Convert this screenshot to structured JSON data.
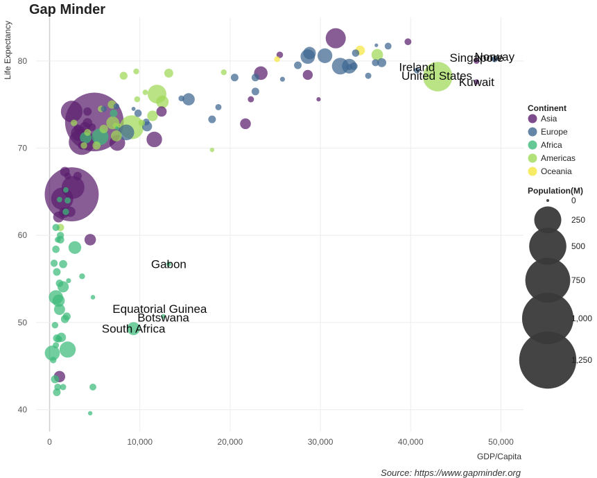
{
  "title": "Gap Minder",
  "source": "Source: https://www.gapminder.org",
  "chart_data": {
    "type": "scatter",
    "xlabel": "GDP/Capita",
    "ylabel": "Life Expectancy",
    "xlim": [
      -1500,
      52500
    ],
    "ylim": [
      37.5,
      85
    ],
    "x_ticks": [
      0,
      10000,
      20000,
      30000,
      40000,
      50000
    ],
    "x_tick_labels": [
      "0",
      "10,000",
      "20,000",
      "30,000",
      "40,000",
      "50,000"
    ],
    "y_ticks": [
      40,
      50,
      60,
      70,
      80
    ],
    "y_tick_labels": [
      "40",
      "50",
      "60",
      "70",
      "80"
    ],
    "grid": true,
    "colors": {
      "Asia": "#5a1e6e",
      "Europe": "#3d6790",
      "Africa": "#3cba7a",
      "Americas": "#9fd857",
      "Oceania": "#f5e640"
    },
    "legend": {
      "continent_title": "Continent",
      "continents": [
        "Asia",
        "Europe",
        "Africa",
        "Americas",
        "Oceania"
      ],
      "population_title": "Population(M)",
      "population_values": [
        0,
        250,
        500,
        750,
        1000,
        1250
      ],
      "population_labels": [
        "0",
        "250",
        "500",
        "750",
        "1,000",
        "1,250"
      ],
      "placement": "right"
    },
    "labels": [
      {
        "text": "Norway",
        "x": 49300,
        "y": 80.5,
        "continent": "Europe"
      },
      {
        "text": "Singapore",
        "x": 47300,
        "y": 80.4,
        "continent": "Asia"
      },
      {
        "text": "Ireland",
        "x": 40700,
        "y": 79.3,
        "continent": "Europe"
      },
      {
        "text": "United States",
        "x": 42900,
        "y": 78.3,
        "continent": "Americas"
      },
      {
        "text": "Kuwait",
        "x": 47300,
        "y": 77.6,
        "continent": "Asia"
      },
      {
        "text": "Gabon",
        "x": 13200,
        "y": 56.7,
        "continent": "Africa"
      },
      {
        "text": "Equatorial Guinea",
        "x": 12200,
        "y": 51.6,
        "continent": "Africa"
      },
      {
        "text": "Botswana",
        "x": 12600,
        "y": 50.6,
        "continent": "Africa"
      },
      {
        "text": "South Africa",
        "x": 9300,
        "y": 49.3,
        "continent": "Africa"
      }
    ],
    "points": [
      {
        "x": 4960,
        "y": 73,
        "pop": 1319,
        "c": "Asia"
      },
      {
        "x": 2450,
        "y": 64.7,
        "pop": 1110,
        "c": "Asia"
      },
      {
        "x": 3550,
        "y": 70.7,
        "pop": 223,
        "c": "Asia"
      },
      {
        "x": 2600,
        "y": 65.5,
        "pop": 169,
        "c": "Asia"
      },
      {
        "x": 2450,
        "y": 74.2,
        "pop": 150,
        "c": "Asia"
      },
      {
        "x": 1400,
        "y": 64.2,
        "pop": 160,
        "c": "Asia"
      },
      {
        "x": 31700,
        "y": 82.6,
        "pop": 127,
        "c": "Asia"
      },
      {
        "x": 7500,
        "y": 70.6,
        "pop": 71,
        "c": "Asia"
      },
      {
        "x": 11600,
        "y": 71,
        "pop": 69,
        "c": "Asia"
      },
      {
        "x": 3200,
        "y": 71.7,
        "pop": 65,
        "c": "Asia"
      },
      {
        "x": 23400,
        "y": 78.6,
        "pop": 49,
        "c": "Asia"
      },
      {
        "x": 28600,
        "y": 78.4,
        "pop": 22,
        "c": "Asia"
      },
      {
        "x": 21700,
        "y": 72.8,
        "pop": 27,
        "c": "Asia"
      },
      {
        "x": 3900,
        "y": 72.4,
        "pop": 25,
        "c": "Asia"
      },
      {
        "x": 1000,
        "y": 62.1,
        "pop": 28,
        "c": "Asia"
      },
      {
        "x": 1700,
        "y": 67.3,
        "pop": 20,
        "c": "Asia"
      },
      {
        "x": 4500,
        "y": 59.5,
        "pop": 32,
        "c": "Asia"
      },
      {
        "x": 1100,
        "y": 43.8,
        "pop": 31,
        "c": "Asia"
      },
      {
        "x": 12400,
        "y": 74.2,
        "pop": 24,
        "c": "Asia"
      },
      {
        "x": 4200,
        "y": 72.9,
        "pop": 19,
        "c": "Asia"
      },
      {
        "x": 2300,
        "y": 62.7,
        "pop": 23,
        "c": "Asia"
      },
      {
        "x": 1600,
        "y": 62.6,
        "pop": 25,
        "c": "Asia"
      },
      {
        "x": 4700,
        "y": 72.4,
        "pop": 10,
        "c": "Asia"
      },
      {
        "x": 3600,
        "y": 70.3,
        "pop": 12,
        "c": "Asia"
      },
      {
        "x": 1700,
        "y": 62.7,
        "pop": 10,
        "c": "Asia"
      },
      {
        "x": 3100,
        "y": 66.8,
        "pop": 13,
        "c": "Asia"
      },
      {
        "x": 47300,
        "y": 80,
        "pop": 4,
        "c": "Asia"
      },
      {
        "x": 47300,
        "y": 77.6,
        "pop": 2.5,
        "c": "Asia"
      },
      {
        "x": 39700,
        "y": 82.2,
        "pop": 7,
        "c": "Asia"
      },
      {
        "x": 25500,
        "y": 80.7,
        "pop": 6,
        "c": "Asia"
      },
      {
        "x": 29800,
        "y": 75.6,
        "pop": 1,
        "c": "Asia"
      },
      {
        "x": 22300,
        "y": 75.6,
        "pop": 5,
        "c": "Asia"
      },
      {
        "x": 4200,
        "y": 74.2,
        "pop": 13,
        "c": "Asia"
      },
      {
        "x": 2000,
        "y": 66.8,
        "pop": 7,
        "c": "Asia"
      },
      {
        "x": 3100,
        "y": 72.3,
        "pop": 9,
        "c": "Asia"
      },
      {
        "x": 32200,
        "y": 79.4,
        "pop": 82,
        "c": "Europe"
      },
      {
        "x": 30500,
        "y": 80.6,
        "pop": 61,
        "c": "Europe"
      },
      {
        "x": 33200,
        "y": 79.4,
        "pop": 60,
        "c": "Europe"
      },
      {
        "x": 28600,
        "y": 80.5,
        "pop": 58,
        "c": "Europe"
      },
      {
        "x": 28800,
        "y": 80.9,
        "pop": 40,
        "c": "Europe"
      },
      {
        "x": 15400,
        "y": 75.6,
        "pop": 38,
        "c": "Europe"
      },
      {
        "x": 8500,
        "y": 71.8,
        "pop": 71,
        "c": "Europe"
      },
      {
        "x": 10800,
        "y": 72.5,
        "pop": 22,
        "c": "Europe"
      },
      {
        "x": 36800,
        "y": 79.8,
        "pop": 16,
        "c": "Europe"
      },
      {
        "x": 33700,
        "y": 79.4,
        "pop": 10,
        "c": "Europe"
      },
      {
        "x": 27500,
        "y": 79.5,
        "pop": 10,
        "c": "Europe"
      },
      {
        "x": 22800,
        "y": 78.1,
        "pop": 10,
        "c": "Europe"
      },
      {
        "x": 22800,
        "y": 76.5,
        "pop": 10,
        "c": "Europe"
      },
      {
        "x": 18000,
        "y": 73.3,
        "pop": 10,
        "c": "Europe"
      },
      {
        "x": 20500,
        "y": 78.1,
        "pop": 10,
        "c": "Europe"
      },
      {
        "x": 36100,
        "y": 79.8,
        "pop": 8,
        "c": "Europe"
      },
      {
        "x": 37500,
        "y": 81.7,
        "pop": 7,
        "c": "Europe"
      },
      {
        "x": 33900,
        "y": 80.9,
        "pop": 9,
        "c": "Europe"
      },
      {
        "x": 35300,
        "y": 78.3,
        "pop": 5,
        "c": "Europe"
      },
      {
        "x": 33200,
        "y": 79.3,
        "pop": 5,
        "c": "Europe"
      },
      {
        "x": 49300,
        "y": 80.2,
        "pop": 4.6,
        "c": "Europe"
      },
      {
        "x": 40700,
        "y": 78.9,
        "pop": 4.1,
        "c": "Europe"
      },
      {
        "x": 10700,
        "y": 73,
        "pop": 7,
        "c": "Europe"
      },
      {
        "x": 9800,
        "y": 74,
        "pop": 9,
        "c": "Europe"
      },
      {
        "x": 6000,
        "y": 74.5,
        "pop": 4,
        "c": "Europe"
      },
      {
        "x": 7400,
        "y": 74.8,
        "pop": 4,
        "c": "Europe"
      },
      {
        "x": 14600,
        "y": 75.7,
        "pop": 4,
        "c": "Europe"
      },
      {
        "x": 18700,
        "y": 74.7,
        "pop": 5,
        "c": "Europe"
      },
      {
        "x": 25800,
        "y": 77.9,
        "pop": 2,
        "c": "Europe"
      },
      {
        "x": 36200,
        "y": 81.8,
        "pop": 0.3,
        "c": "Europe"
      },
      {
        "x": 9300,
        "y": 74.5,
        "pop": 0.7,
        "c": "Europe"
      },
      {
        "x": 2000,
        "y": 46.9,
        "pop": 76,
        "c": "Africa"
      },
      {
        "x": 700,
        "y": 52.9,
        "pop": 55,
        "c": "Africa"
      },
      {
        "x": 300,
        "y": 46.5,
        "pop": 64,
        "c": "Africa"
      },
      {
        "x": 5600,
        "y": 71.3,
        "pop": 80,
        "c": "Africa"
      },
      {
        "x": 2800,
        "y": 58.6,
        "pop": 42,
        "c": "Africa"
      },
      {
        "x": 4000,
        "y": 71.2,
        "pop": 33,
        "c": "Africa"
      },
      {
        "x": 9300,
        "y": 49.3,
        "pop": 44,
        "c": "Africa"
      },
      {
        "x": 1500,
        "y": 54.1,
        "pop": 30,
        "c": "Africa"
      },
      {
        "x": 1000,
        "y": 52.5,
        "pop": 38,
        "c": "Africa"
      },
      {
        "x": 1100,
        "y": 51.5,
        "pop": 29,
        "c": "Africa"
      },
      {
        "x": 1300,
        "y": 48.3,
        "pop": 18,
        "c": "Africa"
      },
      {
        "x": 800,
        "y": 48.2,
        "pop": 10,
        "c": "Africa"
      },
      {
        "x": 1700,
        "y": 50.4,
        "pop": 12,
        "c": "Africa"
      },
      {
        "x": 1500,
        "y": 56.7,
        "pop": 12,
        "c": "Africa"
      },
      {
        "x": 800,
        "y": 55.8,
        "pop": 10,
        "c": "Africa"
      },
      {
        "x": 600,
        "y": 49.7,
        "pop": 6,
        "c": "Africa"
      },
      {
        "x": 500,
        "y": 56.8,
        "pop": 8,
        "c": "Africa"
      },
      {
        "x": 700,
        "y": 58.4,
        "pop": 9,
        "c": "Africa"
      },
      {
        "x": 1200,
        "y": 59.5,
        "pop": 10,
        "c": "Africa"
      },
      {
        "x": 1200,
        "y": 60,
        "pop": 8,
        "c": "Africa"
      },
      {
        "x": 900,
        "y": 42.6,
        "pop": 7,
        "c": "Africa"
      },
      {
        "x": 800,
        "y": 42,
        "pop": 10,
        "c": "Africa"
      },
      {
        "x": 4800,
        "y": 42.6,
        "pop": 7,
        "c": "Africa"
      },
      {
        "x": 1800,
        "y": 62.7,
        "pop": 6,
        "c": "Africa"
      },
      {
        "x": 2000,
        "y": 64,
        "pop": 5,
        "c": "Africa"
      },
      {
        "x": 7100,
        "y": 74,
        "pop": 10,
        "c": "Africa"
      },
      {
        "x": 1500,
        "y": 42.6,
        "pop": 5,
        "c": "Africa"
      },
      {
        "x": 600,
        "y": 43.5,
        "pop": 12,
        "c": "Africa"
      },
      {
        "x": 400,
        "y": 45.7,
        "pop": 6,
        "c": "Africa"
      },
      {
        "x": 1900,
        "y": 50.7,
        "pop": 11,
        "c": "Africa"
      },
      {
        "x": 1100,
        "y": 54.5,
        "pop": 9,
        "c": "Africa"
      },
      {
        "x": 3600,
        "y": 55.3,
        "pop": 4,
        "c": "Africa"
      },
      {
        "x": 4500,
        "y": 39.6,
        "pop": 1.1,
        "c": "Africa"
      },
      {
        "x": 4800,
        "y": 52.9,
        "pop": 1.3,
        "c": "Africa"
      },
      {
        "x": 13200,
        "y": 56.7,
        "pop": 1.5,
        "c": "Africa"
      },
      {
        "x": 12600,
        "y": 50.7,
        "pop": 1.6,
        "c": "Africa"
      },
      {
        "x": 700,
        "y": 60.9,
        "pop": 8,
        "c": "Africa"
      },
      {
        "x": 1000,
        "y": 48.1,
        "pop": 7,
        "c": "Africa"
      },
      {
        "x": 700,
        "y": 47.4,
        "pop": 5,
        "c": "Africa"
      },
      {
        "x": 2100,
        "y": 54.8,
        "pop": 2,
        "c": "Africa"
      },
      {
        "x": 1800,
        "y": 65.2,
        "pop": 3,
        "c": "Africa"
      },
      {
        "x": 7500,
        "y": 72.3,
        "pop": 1,
        "c": "Africa"
      },
      {
        "x": 1100,
        "y": 64.1,
        "pop": 3,
        "c": "Africa"
      },
      {
        "x": 900,
        "y": 59.5,
        "pop": 4,
        "c": "Africa"
      },
      {
        "x": 43000,
        "y": 78.2,
        "pop": 301,
        "c": "Americas"
      },
      {
        "x": 9100,
        "y": 72.4,
        "pop": 190,
        "c": "Americas"
      },
      {
        "x": 11900,
        "y": 76.2,
        "pop": 108,
        "c": "Americas"
      },
      {
        "x": 12500,
        "y": 75.3,
        "pop": 40,
        "c": "Americas"
      },
      {
        "x": 36300,
        "y": 80.7,
        "pop": 33,
        "c": "Americas"
      },
      {
        "x": 7000,
        "y": 72.9,
        "pop": 44,
        "c": "Americas"
      },
      {
        "x": 7400,
        "y": 71.4,
        "pop": 28,
        "c": "Americas"
      },
      {
        "x": 11400,
        "y": 73.7,
        "pop": 26,
        "c": "Americas"
      },
      {
        "x": 13200,
        "y": 78.6,
        "pop": 16,
        "c": "Americas"
      },
      {
        "x": 8200,
        "y": 78.3,
        "pop": 11,
        "c": "Americas"
      },
      {
        "x": 6900,
        "y": 75,
        "pop": 13,
        "c": "Americas"
      },
      {
        "x": 5200,
        "y": 70.3,
        "pop": 12,
        "c": "Americas"
      },
      {
        "x": 6000,
        "y": 72.2,
        "pop": 14,
        "c": "Americas"
      },
      {
        "x": 3800,
        "y": 70.3,
        "pop": 6,
        "c": "Americas"
      },
      {
        "x": 1200,
        "y": 60.9,
        "pop": 9,
        "c": "Americas"
      },
      {
        "x": 9600,
        "y": 78.8,
        "pop": 4,
        "c": "Americas"
      },
      {
        "x": 5700,
        "y": 74.5,
        "pop": 6,
        "c": "Americas"
      },
      {
        "x": 4200,
        "y": 71.8,
        "pop": 7,
        "c": "Americas"
      },
      {
        "x": 2700,
        "y": 72.9,
        "pop": 6,
        "c": "Americas"
      },
      {
        "x": 7700,
        "y": 72.6,
        "pop": 1,
        "c": "Americas"
      },
      {
        "x": 10600,
        "y": 76.4,
        "pop": 3,
        "c": "Americas"
      },
      {
        "x": 19300,
        "y": 78.7,
        "pop": 4,
        "c": "Americas"
      },
      {
        "x": 18000,
        "y": 69.8,
        "pop": 1.1,
        "c": "Americas"
      },
      {
        "x": 7300,
        "y": 72.6,
        "pop": 2.8,
        "c": "Americas"
      },
      {
        "x": 10200,
        "y": 72.9,
        "pop": 6,
        "c": "Americas"
      },
      {
        "x": 9700,
        "y": 75.6,
        "pop": 4,
        "c": "Americas"
      },
      {
        "x": 34400,
        "y": 81.2,
        "pop": 20,
        "c": "Oceania"
      },
      {
        "x": 25200,
        "y": 80.2,
        "pop": 4,
        "c": "Oceania"
      }
    ]
  }
}
